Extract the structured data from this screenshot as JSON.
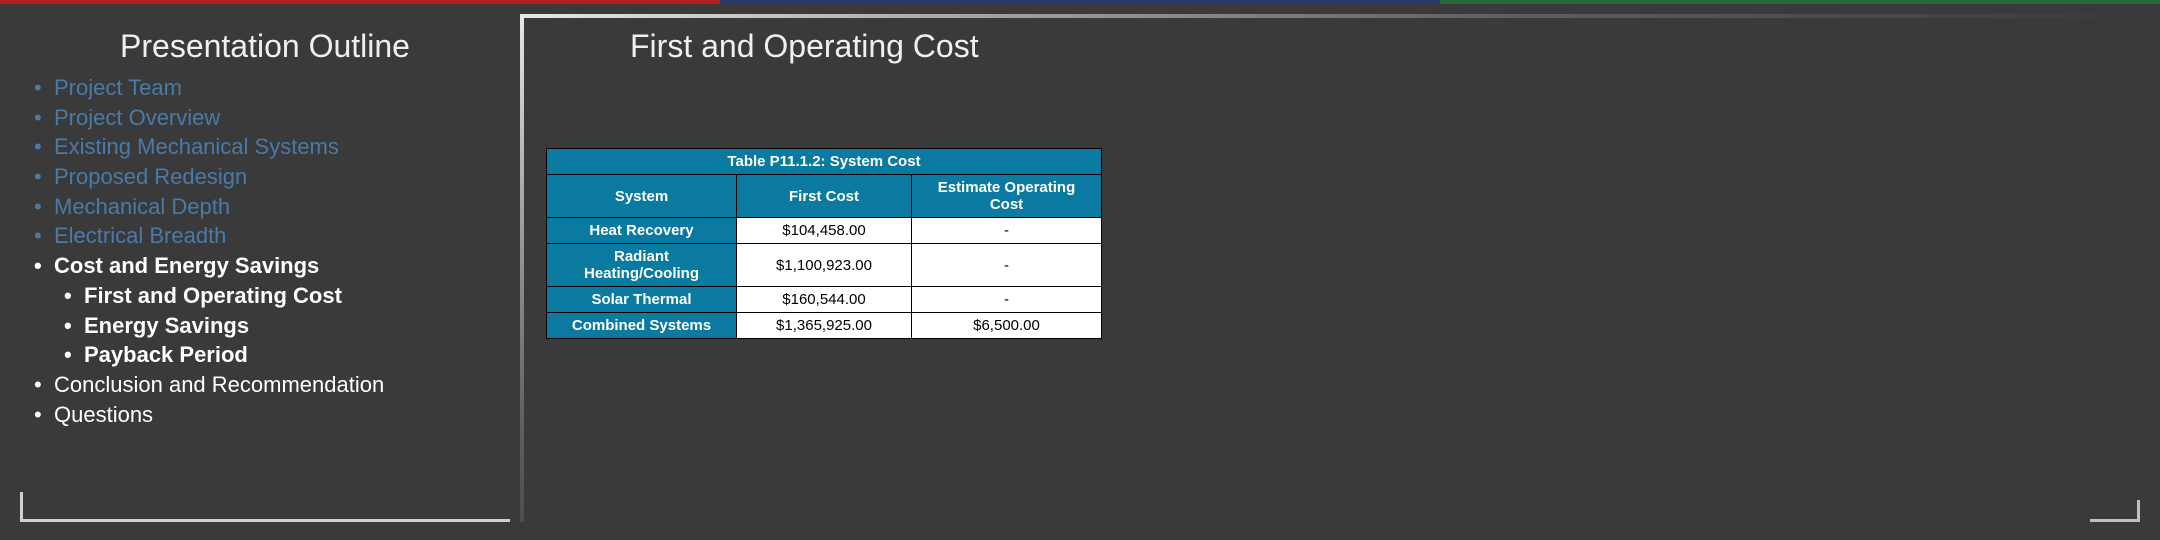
{
  "colors": {
    "background": "#3a3a3a",
    "dim_text": "#4a7aa8",
    "white": "#ffffff",
    "table_header_bg": "#0a7aa0",
    "table_cell_bg": "#ffffff",
    "table_border": "#000000",
    "top_red": "#b02020",
    "top_blue": "#2a3a6a",
    "top_green": "#2a6a3a"
  },
  "left": {
    "title": "Presentation Outline",
    "items": [
      {
        "label": "Project Team",
        "style": "dim"
      },
      {
        "label": "Project Overview",
        "style": "dim"
      },
      {
        "label": "Existing Mechanical Systems",
        "style": "dim"
      },
      {
        "label": "Proposed Redesign",
        "style": "dim"
      },
      {
        "label": "Mechanical Depth",
        "style": "dim"
      },
      {
        "label": "Electrical Breadth",
        "style": "dim"
      },
      {
        "label": "Cost and Energy Savings",
        "style": "bold",
        "children": [
          {
            "label": "First and Operating Cost",
            "style": "bold"
          },
          {
            "label": "Energy Savings",
            "style": "norm"
          },
          {
            "label": "Payback Period",
            "style": "norm"
          }
        ]
      },
      {
        "label": "Conclusion and Recommendation",
        "style": "norm"
      },
      {
        "label": "Questions",
        "style": "norm"
      }
    ]
  },
  "right": {
    "title": "First and Operating Cost",
    "table": {
      "caption": "Table P11.1.2: System Cost",
      "columns": [
        "System",
        "First Cost",
        "Estimate Operating Cost"
      ],
      "rows": [
        [
          "Heat Recovery",
          "$104,458.00",
          "-"
        ],
        [
          "Radiant Heating/Cooling",
          "$1,100,923.00",
          "-"
        ],
        [
          "Solar Thermal",
          "$160,544.00",
          "-"
        ],
        [
          "Combined Systems",
          "$1,365,925.00",
          "$6,500.00"
        ]
      ]
    }
  }
}
